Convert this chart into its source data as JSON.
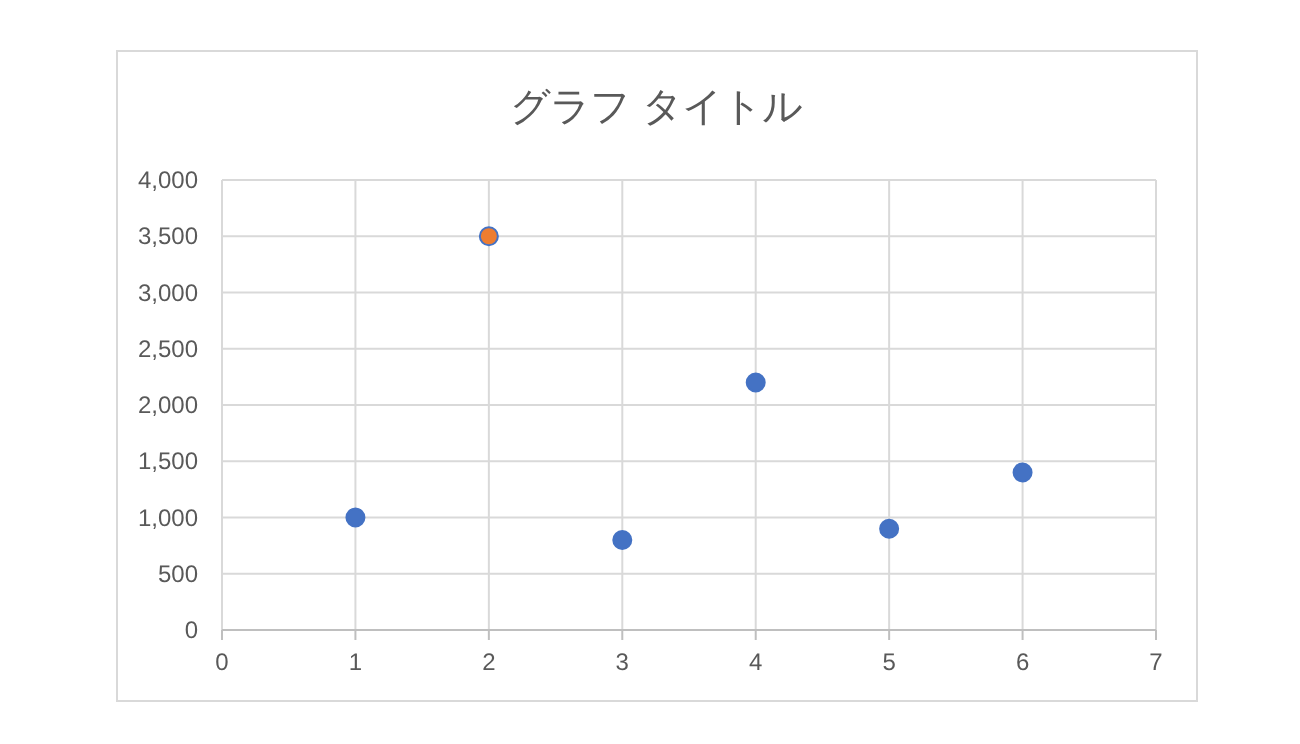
{
  "chart_data": {
    "type": "scatter",
    "title": "グラフ タイトル",
    "x": [
      1,
      2,
      3,
      4,
      5,
      6
    ],
    "series": [
      {
        "color": "#4472c4",
        "colors": [
          "#4472c4",
          "#ed7d31",
          "#4472c4",
          "#4472c4",
          "#4472c4",
          "#4472c4"
        ],
        "values": [
          1000,
          3500,
          800,
          2200,
          900,
          1400
        ]
      }
    ],
    "xlim": [
      0,
      7
    ],
    "xticks": [
      0,
      1,
      2,
      3,
      4,
      5,
      6,
      7
    ],
    "ylim": [
      0,
      4000
    ],
    "yticks": [
      0,
      {
        "value": 500,
        "label": "500"
      },
      {
        "value": 1000,
        "label": "1,000"
      },
      {
        "value": 1500,
        "label": "1,500"
      },
      {
        "value": 2000,
        "label": "2,000"
      },
      {
        "value": 2500,
        "label": "2,500"
      },
      {
        "value": 3000,
        "label": "3,000"
      },
      {
        "value": 3500,
        "label": "3,500"
      },
      {
        "value": 4000,
        "label": "4,000"
      }
    ],
    "grid": true,
    "marker": "circle"
  }
}
